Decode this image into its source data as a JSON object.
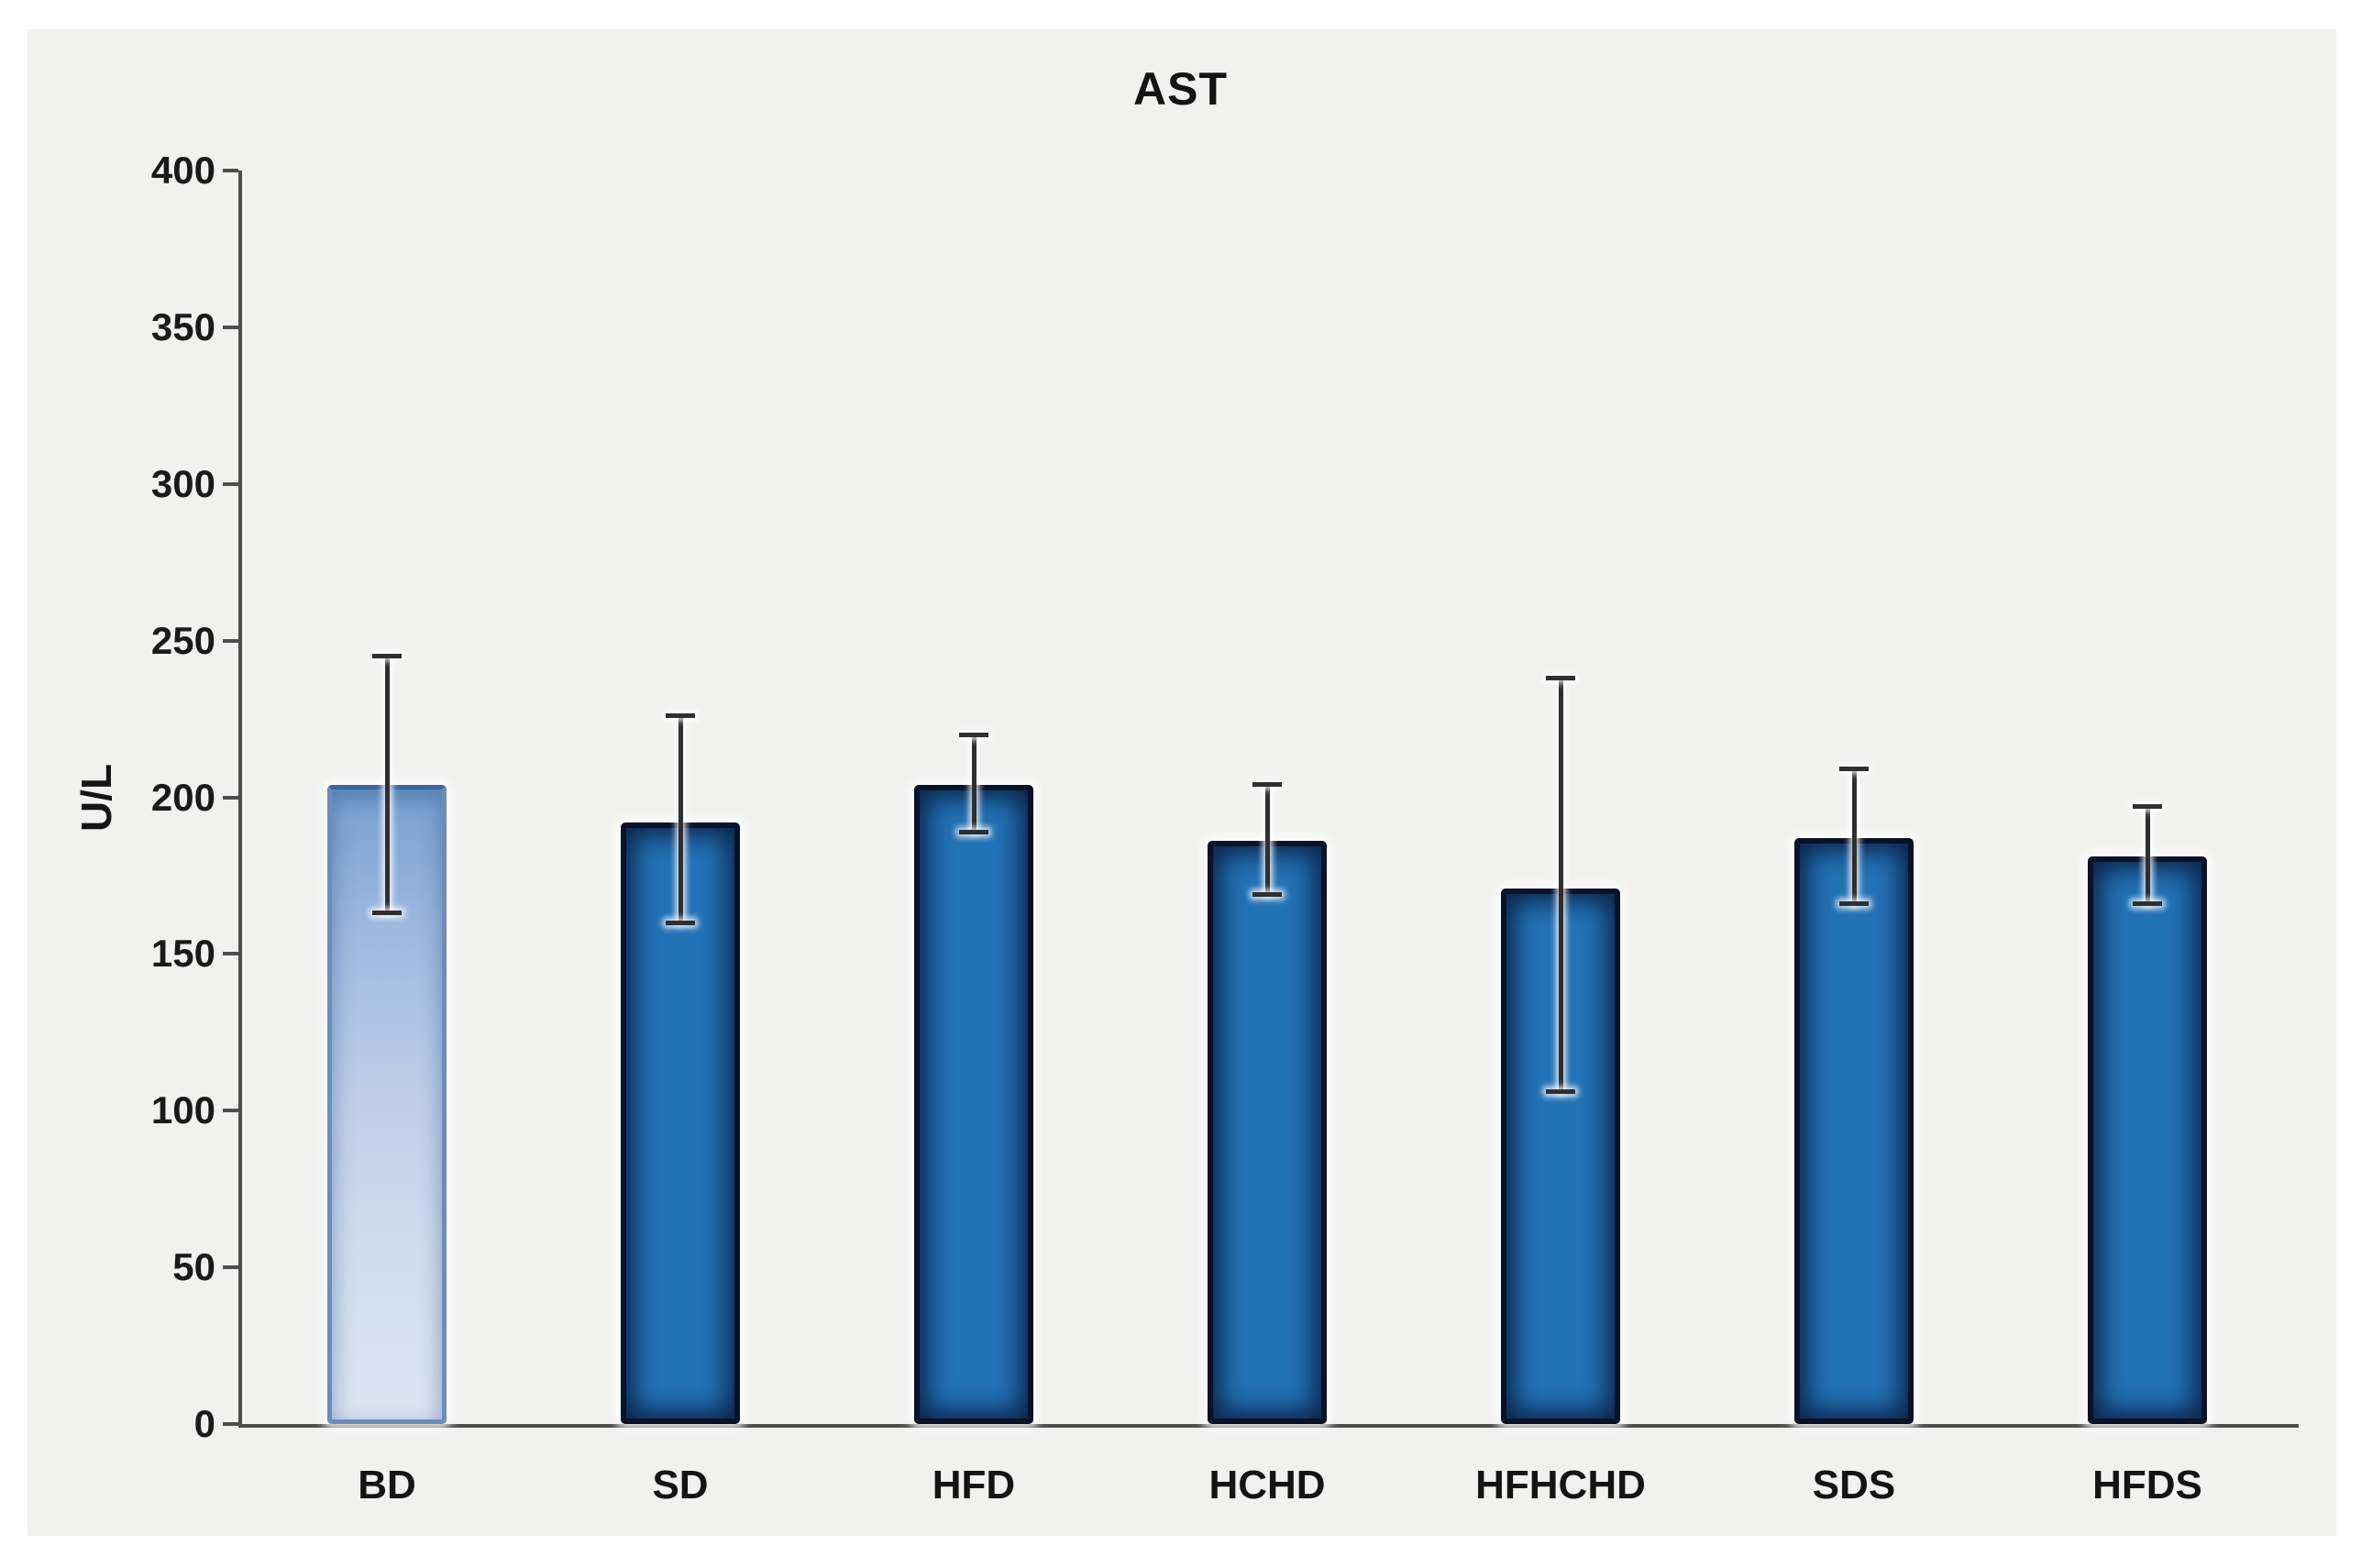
{
  "title": "AST",
  "chart_data": {
    "type": "bar",
    "title": "AST",
    "xlabel": "",
    "ylabel": "U/L",
    "ylim": [
      0,
      400
    ],
    "yticks": [
      400,
      350,
      300,
      250,
      200,
      150,
      100,
      50,
      0
    ],
    "grid": false,
    "legend": false,
    "categories": [
      "BD",
      "SD",
      "HFD",
      "HCHD",
      "HFHCHD",
      "SDS",
      "HFDS"
    ],
    "values": [
      204,
      192,
      204,
      186,
      171,
      187,
      181
    ],
    "error_bars": {
      "top": [
        245,
        226,
        220,
        204,
        238,
        209,
        197
      ],
      "bottom": [
        163,
        160,
        189,
        169,
        106,
        166,
        166
      ]
    },
    "colors": {
      "panel_background": "#f1f1f0",
      "page_background": "#ffffff",
      "bar_fill": "#2272b6",
      "bar_border": "#0a1228",
      "first_bar_gradient_top": "#76a0d1",
      "first_bar_gradient_bottom": "#dbe4f3",
      "first_bar_border": "#6d8cba",
      "axis_line": "#4d4d4d",
      "error_bar": "#2f2f2f",
      "text": "#141414"
    }
  }
}
